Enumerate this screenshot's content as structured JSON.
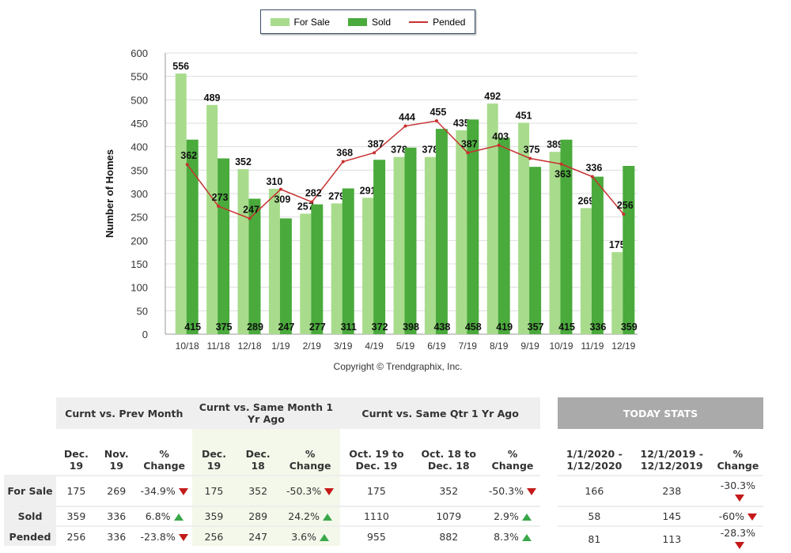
{
  "chart_data": {
    "type": "bar",
    "title": "",
    "xlabel": "",
    "ylabel": "Number of Homes",
    "ylim": [
      0,
      600
    ],
    "yticks": [
      0,
      50,
      100,
      150,
      200,
      250,
      300,
      350,
      400,
      450,
      500,
      550,
      600
    ],
    "grid": true,
    "legend_position": "top-center",
    "copyright": "Copyright © Trendgraphix, Inc.",
    "categories": [
      "10/18",
      "11/18",
      "12/18",
      "1/19",
      "2/19",
      "3/19",
      "4/19",
      "5/19",
      "6/19",
      "7/19",
      "8/19",
      "9/19",
      "10/19",
      "11/19",
      "12/19"
    ],
    "series": [
      {
        "name": "For Sale",
        "kind": "bar",
        "color": "#a8dc8c",
        "values": [
          556,
          489,
          352,
          310,
          257,
          279,
          291,
          378,
          378,
          435,
          492,
          451,
          389,
          269,
          175
        ]
      },
      {
        "name": "Sold",
        "kind": "bar",
        "color": "#4aaa3c",
        "values": [
          415,
          375,
          289,
          247,
          277,
          311,
          372,
          398,
          438,
          458,
          419,
          357,
          415,
          336,
          359
        ]
      },
      {
        "name": "Pended",
        "kind": "line",
        "color": "#c83030",
        "values": [
          362,
          273,
          247,
          309,
          282,
          368,
          387,
          444,
          455,
          387,
          403,
          375,
          363,
          336,
          256
        ]
      }
    ]
  },
  "table": {
    "groups": [
      "Curnt vs. Prev Month",
      "Curnt vs. Same Month 1 Yr Ago",
      "Curnt vs. Same Qtr 1 Yr Ago",
      "TODAY STATS"
    ],
    "cols": [
      "Dec. 19",
      "Nov. 19",
      "% Change",
      "Dec. 19",
      "Dec. 18",
      "% Change",
      "Oct. 19 to Dec. 19",
      "Oct. 18 to Dec. 18",
      "% Change",
      "1/1/2020 - 1/12/2020",
      "12/1/2019 - 12/12/2019",
      "% Change"
    ],
    "rows": [
      {
        "label": "For Sale",
        "cells": [
          "175",
          "269",
          "-34.9%",
          "175",
          "352",
          "-50.3%",
          "175",
          "352",
          "-50.3%",
          "166",
          "238",
          "-30.3%"
        ],
        "dir": [
          "",
          "",
          "down",
          "",
          "",
          "down",
          "",
          "",
          "down",
          "",
          "",
          "down"
        ]
      },
      {
        "label": "Sold",
        "cells": [
          "359",
          "336",
          "6.8%",
          "359",
          "289",
          "24.2%",
          "1110",
          "1079",
          "2.9%",
          "58",
          "145",
          "-60%"
        ],
        "dir": [
          "",
          "",
          "up",
          "",
          "",
          "up",
          "",
          "",
          "up",
          "",
          "",
          "down"
        ]
      },
      {
        "label": "Pended",
        "cells": [
          "256",
          "336",
          "-23.8%",
          "256",
          "247",
          "3.6%",
          "955",
          "882",
          "8.3%",
          "81",
          "113",
          "-28.3%"
        ],
        "dir": [
          "",
          "",
          "down",
          "",
          "",
          "up",
          "",
          "",
          "up",
          "",
          "",
          "down"
        ]
      }
    ]
  }
}
